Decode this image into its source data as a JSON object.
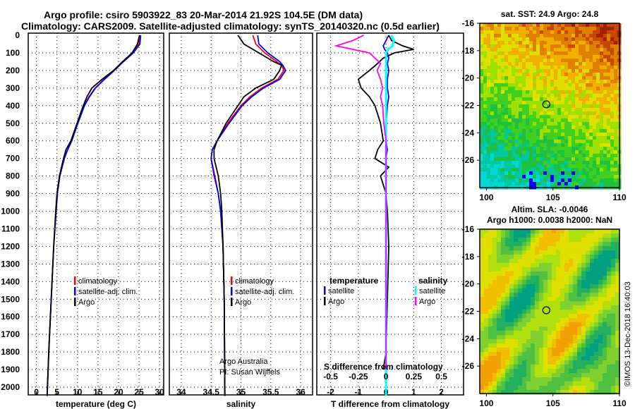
{
  "title": {
    "line1": "Argo profile: csiro 5903922_83 20-Mar-2014 21.92S 104.5E (DM data)",
    "line2": "Climatology: CARS2009. Satellite-adjusted climatology: synTS_20140320.nc (0.5d earlier)"
  },
  "credits": {
    "argo": "Argo Australia",
    "pi": "PI: Susan Wijffels",
    "imos": "©IMOS 13-Dec-2018 16:40:03"
  },
  "colors": {
    "climatology": "#ff0000",
    "satellite": "#0000ff",
    "argo": "#000000",
    "sal_satellite": "#00ffff",
    "sal_argo": "#ff00ff"
  },
  "chart_data": [
    {
      "type": "line",
      "name": "temperature",
      "xlabel": "temperature (deg C)",
      "ylabel": "depth",
      "xlim": [
        -2,
        31
      ],
      "ylim": [
        2050,
        0
      ],
      "xticks": [
        "0",
        "5",
        "10",
        "15",
        "20",
        "25",
        "30"
      ],
      "xtick_values": [
        0,
        5,
        10,
        15,
        20,
        25,
        30
      ],
      "yticks": [
        "0",
        "100",
        "200",
        "300",
        "400",
        "500",
        "600",
        "700",
        "800",
        "900",
        "1000",
        "1100",
        "1200",
        "1300",
        "1400",
        "1500",
        "1600",
        "1700",
        "1800",
        "1900",
        "2000"
      ],
      "legend": [
        "climatology",
        "satellite-adj. clim.",
        "Argo"
      ],
      "legend_placement": "center",
      "depth": [
        0,
        50,
        100,
        150,
        200,
        250,
        300,
        350,
        400,
        500,
        600,
        650,
        700,
        800,
        900,
        1000,
        1200,
        1500,
        1800,
        2050
      ],
      "series": [
        {
          "name": "climatology",
          "values": [
            25.2,
            25.0,
            23.5,
            21.0,
            18.8,
            16.5,
            14.3,
            12.8,
            11.6,
            10.0,
            8.6,
            7.6,
            6.8,
            5.7,
            5.1,
            4.8,
            4.2,
            3.6,
            3.0,
            2.6
          ]
        },
        {
          "name": "satellite-adj. clim.",
          "values": [
            25.4,
            25.2,
            23.6,
            21.2,
            19.0,
            16.6,
            14.4,
            12.9,
            11.7,
            10.1,
            8.6,
            7.6,
            6.8,
            5.7,
            5.1,
            4.8,
            4.2,
            3.6,
            3.0,
            2.6
          ]
        },
        {
          "name": "Argo",
          "values": [
            25.1,
            24.6,
            23.3,
            21.0,
            18.8,
            16.0,
            13.5,
            12.3,
            11.4,
            9.9,
            8.4,
            7.2,
            6.6,
            5.6,
            5.0,
            4.7,
            4.2,
            3.6,
            3.0,
            2.6
          ]
        }
      ]
    },
    {
      "type": "line",
      "name": "salinity",
      "xlabel": "salinity",
      "xlim": [
        33.8,
        36.2
      ],
      "ylim": [
        2050,
        0
      ],
      "xticks": [
        "34",
        "34.5",
        "35",
        "35.5",
        "36"
      ],
      "xtick_values": [
        34,
        34.5,
        35,
        35.5,
        36
      ],
      "legend": [
        "climatology",
        "satellite-adj. clim.",
        "Argo"
      ],
      "legend_placement": "bottom-right",
      "depth": [
        0,
        50,
        100,
        150,
        170,
        200,
        250,
        300,
        350,
        400,
        500,
        600,
        650,
        700,
        800,
        900,
        1000,
        1200,
        1500,
        2050
      ],
      "series": [
        {
          "name": "climatology",
          "values": [
            35.2,
            35.25,
            35.4,
            35.6,
            35.68,
            35.72,
            35.62,
            35.35,
            35.15,
            35.0,
            34.78,
            34.6,
            34.52,
            34.5,
            34.55,
            34.62,
            34.66,
            34.7,
            34.72,
            34.73
          ]
        },
        {
          "name": "satellite-adj. clim.",
          "values": [
            35.28,
            35.3,
            35.45,
            35.65,
            35.7,
            35.75,
            35.65,
            35.38,
            35.18,
            35.02,
            34.8,
            34.6,
            34.52,
            34.5,
            34.56,
            34.62,
            34.66,
            34.7,
            34.72,
            34.73
          ]
        },
        {
          "name": "Argo",
          "values": [
            34.95,
            35.05,
            35.3,
            35.55,
            35.68,
            35.65,
            35.55,
            35.25,
            35.05,
            34.95,
            34.75,
            34.6,
            34.55,
            34.55,
            34.62,
            34.66,
            34.68,
            34.7,
            34.72,
            34.73
          ]
        }
      ]
    },
    {
      "type": "line",
      "name": "differences",
      "xlabel": "T difference from climatology",
      "x2label": "S difference from climatology",
      "xlim": [
        -2.5,
        2.8
      ],
      "ylim": [
        2050,
        0
      ],
      "xticks": [
        "-2",
        "-1",
        "0",
        "1",
        "2"
      ],
      "xtick_values": [
        -2,
        -1,
        0,
        1,
        2
      ],
      "x2ticks": [
        "-0.5",
        "-0.25",
        "0",
        "0.25",
        "0.5"
      ],
      "x2tick_values": [
        -0.5,
        -0.25,
        0,
        0.25,
        0.5
      ],
      "legend_temperature_title": "temperature",
      "legend_salinity_title": "salinity",
      "legend_temperature": [
        "satellite",
        "Argo"
      ],
      "legend_salinity": [
        "satellite",
        "Argo"
      ],
      "depth": [
        0,
        30,
        60,
        80,
        100,
        130,
        160,
        200,
        250,
        300,
        350,
        400,
        500,
        600,
        650,
        700,
        750,
        800,
        900,
        1000,
        1200,
        1500,
        1800,
        1900,
        2050
      ],
      "series": [
        {
          "name": "T satellite",
          "values": [
            0.1,
            0.0,
            -0.1,
            -0.05,
            0.05,
            0.1,
            0.05,
            0.1,
            0.05,
            0.05,
            0.1,
            0.05,
            0.0,
            0.0,
            0.05,
            0.0,
            0.0,
            0.0,
            0.0,
            0.0,
            0.0,
            0.0,
            0.0,
            0.0,
            0.0
          ]
        },
        {
          "name": "T Argo",
          "values": [
            0.1,
            0.2,
            0.6,
            1.0,
            0.3,
            -0.1,
            -0.3,
            -0.6,
            -1.0,
            -0.9,
            -0.6,
            -0.4,
            -0.2,
            -0.1,
            -0.3,
            -0.4,
            0.1,
            -0.2,
            0.0,
            0.05,
            0.1,
            0.05,
            0.0,
            -0.1,
            null
          ]
        },
        {
          "name": "S satellite",
          "values": [
            0.05,
            0.07,
            0.06,
            0.02,
            0.0,
            0.0,
            0.0,
            0.0,
            0.0,
            0.0,
            0.0,
            0.0,
            0.0,
            0.0,
            0.0,
            0.0,
            0.0,
            0.0,
            0.0,
            0.0,
            0.0,
            0.0,
            0.0,
            0.0,
            0.0
          ]
        },
        {
          "name": "S Argo",
          "values": [
            -0.2,
            -0.3,
            -0.45,
            -0.3,
            -0.15,
            -0.1,
            -0.05,
            -0.08,
            -0.05,
            -0.03,
            -0.05,
            -0.03,
            -0.02,
            0.0,
            0.0,
            0.0,
            0.0,
            0.0,
            0.0,
            0.0,
            0.0,
            0.0,
            0.0,
            0.0,
            null
          ]
        }
      ]
    },
    {
      "type": "heatmap",
      "name": "sst-map",
      "title": "sat. SST: 24.9 Argo: 24.8",
      "xlim": [
        99.5,
        110
      ],
      "ylim": [
        -28,
        -16
      ],
      "xticks": [
        "100",
        "105",
        "110"
      ],
      "xtick_values": [
        100,
        105,
        110
      ],
      "yticks": [
        "-16",
        "-18",
        "-20",
        "-22",
        "-24",
        "-26"
      ],
      "ytick_values": [
        -16,
        -18,
        -20,
        -22,
        -24,
        -26
      ],
      "marker": {
        "lon": 104.5,
        "lat": -21.92
      }
    },
    {
      "type": "heatmap",
      "name": "sla-map",
      "title": "Altim. SLA: -0.0046",
      "subtitle": "Argo h1000: 0.0038 h2000: NaN",
      "xlim": [
        99.5,
        110
      ],
      "ylim": [
        -28,
        -16
      ],
      "xticks": [
        "100",
        "105",
        "110"
      ],
      "xtick_values": [
        100,
        105,
        110
      ],
      "yticks": [
        "-16",
        "-18",
        "-20",
        "-22",
        "-24",
        "-26"
      ],
      "ytick_values": [
        -16,
        -18,
        -20,
        -22,
        -24,
        -26
      ],
      "marker": {
        "lon": 104.5,
        "lat": -21.92
      }
    }
  ]
}
